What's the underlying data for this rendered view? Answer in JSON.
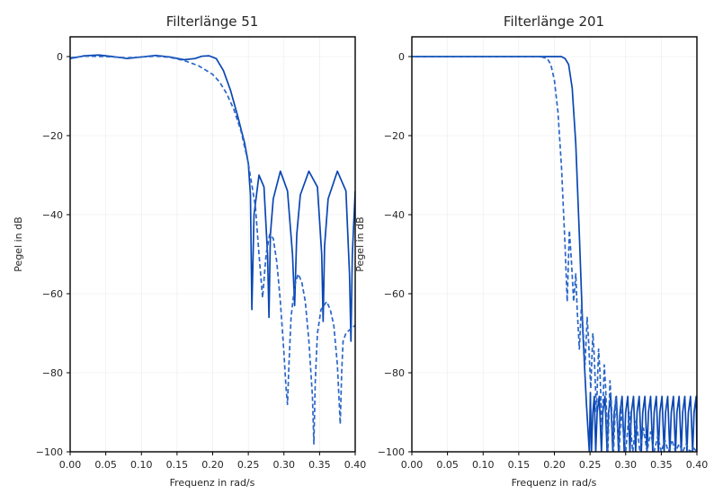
{
  "colors": {
    "line": "#0a47b3",
    "dashed": "#2a66c8"
  },
  "chart_data": [
    {
      "type": "line",
      "title": "Filterlänge 51",
      "xlabel": "Frequenz in rad/s",
      "ylabel": "Pegel in dB",
      "xlim": [
        0.0,
        0.4
      ],
      "ylim": [
        -100,
        5
      ],
      "xticks": [
        "0.00",
        "0.05",
        "0.10",
        "0.15",
        "0.20",
        "0.25",
        "0.30",
        "0.35",
        "0.40"
      ],
      "yticks": [
        "0",
        "−20",
        "−40",
        "−60",
        "−80",
        "−100"
      ],
      "ytick_values": [
        0,
        -20,
        -40,
        -60,
        -80,
        -100
      ],
      "xtick_values": [
        0,
        0.05,
        0.1,
        0.15,
        0.2,
        0.25,
        0.3,
        0.35,
        0.4
      ],
      "grid": true,
      "series": [
        {
          "style": "solid",
          "x": [
            0.0,
            0.02,
            0.04,
            0.06,
            0.08,
            0.1,
            0.12,
            0.14,
            0.16,
            0.175,
            0.185,
            0.195,
            0.205,
            0.215,
            0.225,
            0.235,
            0.245,
            0.25,
            0.253,
            0.255,
            0.258,
            0.265,
            0.272,
            0.277,
            0.279,
            0.281,
            0.285,
            0.295,
            0.305,
            0.312,
            0.315,
            0.318,
            0.323,
            0.335,
            0.347,
            0.353,
            0.355,
            0.357,
            0.362,
            0.375,
            0.387,
            0.392,
            0.394,
            0.396,
            0.4
          ],
          "y": [
            -0.5,
            0.2,
            0.4,
            0.0,
            -0.5,
            -0.1,
            0.3,
            -0.1,
            -0.8,
            -0.5,
            0.1,
            0.2,
            -0.5,
            -3.5,
            -8.5,
            -15,
            -22,
            -27,
            -35,
            -64,
            -40,
            -30,
            -33,
            -50,
            -66,
            -45,
            -36,
            -29,
            -34,
            -50,
            -63,
            -45,
            -35,
            -29,
            -33,
            -50,
            -67,
            -48,
            -36,
            -29,
            -34,
            -55,
            -72,
            -50,
            -34
          ]
        },
        {
          "style": "dashed",
          "x": [
            0.0,
            0.02,
            0.05,
            0.08,
            0.1,
            0.12,
            0.14,
            0.16,
            0.18,
            0.2,
            0.21,
            0.22,
            0.23,
            0.24,
            0.25,
            0.26,
            0.265,
            0.27,
            0.275,
            0.28,
            0.285,
            0.29,
            0.295,
            0.3,
            0.303,
            0.305,
            0.307,
            0.31,
            0.315,
            0.32,
            0.325,
            0.33,
            0.335,
            0.34,
            0.342,
            0.344,
            0.347,
            0.352,
            0.36,
            0.365,
            0.37,
            0.375,
            0.379,
            0.381,
            0.383,
            0.387,
            0.393,
            0.4
          ],
          "y": [
            -0.3,
            0.1,
            0.0,
            -0.3,
            -0.1,
            0.1,
            -0.2,
            -1.0,
            -2.3,
            -4.5,
            -6.5,
            -9.5,
            -13.5,
            -19,
            -27,
            -38,
            -50,
            -61,
            -50,
            -45,
            -46,
            -52,
            -62,
            -75,
            -84,
            -88,
            -78,
            -66,
            -58,
            -55,
            -57,
            -62,
            -72,
            -86,
            -98,
            -82,
            -70,
            -64,
            -62,
            -64,
            -68,
            -78,
            -93,
            -80,
            -72,
            -70,
            -69,
            -68
          ]
        }
      ]
    },
    {
      "type": "line",
      "title": "Filterlänge 201",
      "xlabel": "Frequenz in rad/s",
      "ylabel": "Pegel in dB",
      "xlim": [
        0.0,
        0.4
      ],
      "ylim": [
        -100,
        5
      ],
      "xticks": [
        "0.00",
        "0.05",
        "0.10",
        "0.15",
        "0.20",
        "0.25",
        "0.30",
        "0.35",
        "0.40"
      ],
      "yticks": [
        "0",
        "−20",
        "−40",
        "−60",
        "−80",
        "−100"
      ],
      "ytick_values": [
        0,
        -20,
        -40,
        -60,
        -80,
        -100
      ],
      "xtick_values": [
        0,
        0.05,
        0.1,
        0.15,
        0.2,
        0.25,
        0.3,
        0.35,
        0.4
      ],
      "grid": true,
      "series": [
        {
          "style": "solid",
          "x": [
            0.0,
            0.1,
            0.2,
            0.21,
            0.215,
            0.22,
            0.225,
            0.23,
            0.235,
            0.24,
            0.245,
            0.249,
            0.2505,
            0.252,
            0.254,
            0.256,
            0.258,
            0.26,
            0.263,
            0.266,
            0.268,
            0.271,
            0.274,
            0.276,
            0.279,
            0.282,
            0.284,
            0.287,
            0.29,
            0.292,
            0.295,
            0.298,
            0.3,
            0.303,
            0.306,
            0.308,
            0.311,
            0.314,
            0.316,
            0.319,
            0.322,
            0.324,
            0.327,
            0.33,
            0.332,
            0.335,
            0.338,
            0.34,
            0.343,
            0.346,
            0.348,
            0.351,
            0.354,
            0.356,
            0.359,
            0.362,
            0.364,
            0.367,
            0.37,
            0.372,
            0.375,
            0.378,
            0.38,
            0.383,
            0.386,
            0.388,
            0.391,
            0.394,
            0.396,
            0.399,
            0.4
          ],
          "y": [
            0.0,
            0.0,
            0.0,
            0.0,
            -0.5,
            -2,
            -8,
            -22,
            -45,
            -70,
            -88,
            -100,
            -85,
            -100,
            -90,
            -86,
            -100,
            -90,
            -86,
            -100,
            -90,
            -86,
            -100,
            -90,
            -86,
            -100,
            -90,
            -86,
            -100,
            -90,
            -86,
            -100,
            -90,
            -86,
            -100,
            -90,
            -86,
            -100,
            -90,
            -86,
            -100,
            -90,
            -86,
            -100,
            -90,
            -86,
            -100,
            -90,
            -86,
            -100,
            -90,
            -86,
            -100,
            -90,
            -86,
            -100,
            -90,
            -86,
            -100,
            -90,
            -86,
            -100,
            -90,
            -86,
            -100,
            -90,
            -86,
            -100,
            -90,
            -86,
            -100
          ]
        },
        {
          "style": "dashed",
          "x": [
            0.0,
            0.1,
            0.18,
            0.19,
            0.195,
            0.2,
            0.205,
            0.21,
            0.215,
            0.218,
            0.221,
            0.224,
            0.227,
            0.23,
            0.232,
            0.235,
            0.238,
            0.24,
            0.243,
            0.246,
            0.248,
            0.251,
            0.254,
            0.256,
            0.259,
            0.262,
            0.264,
            0.267,
            0.27,
            0.272,
            0.275,
            0.278,
            0.28,
            0.283,
            0.286,
            0.288,
            0.291,
            0.294,
            0.296,
            0.3,
            0.305,
            0.31,
            0.315,
            0.32,
            0.325,
            0.33,
            0.335,
            0.34,
            0.345,
            0.35,
            0.355,
            0.36,
            0.365,
            0.37,
            0.375,
            0.38,
            0.385,
            0.39,
            0.395,
            0.4
          ],
          "y": [
            0.0,
            0.0,
            0.0,
            -0.5,
            -2,
            -6,
            -14,
            -28,
            -48,
            -62,
            -44,
            -52,
            -62,
            -55,
            -64,
            -74,
            -63,
            -68,
            -78,
            -66,
            -72,
            -84,
            -70,
            -76,
            -90,
            -74,
            -80,
            -95,
            -78,
            -84,
            -100,
            -82,
            -88,
            -100,
            -86,
            -92,
            -100,
            -88,
            -94,
            -100,
            -90,
            -100,
            -92,
            -100,
            -94,
            -100,
            -95,
            -100,
            -96,
            -100,
            -97,
            -100,
            -97,
            -100,
            -98,
            -100,
            -98,
            -100,
            -99,
            -100
          ]
        }
      ]
    }
  ]
}
